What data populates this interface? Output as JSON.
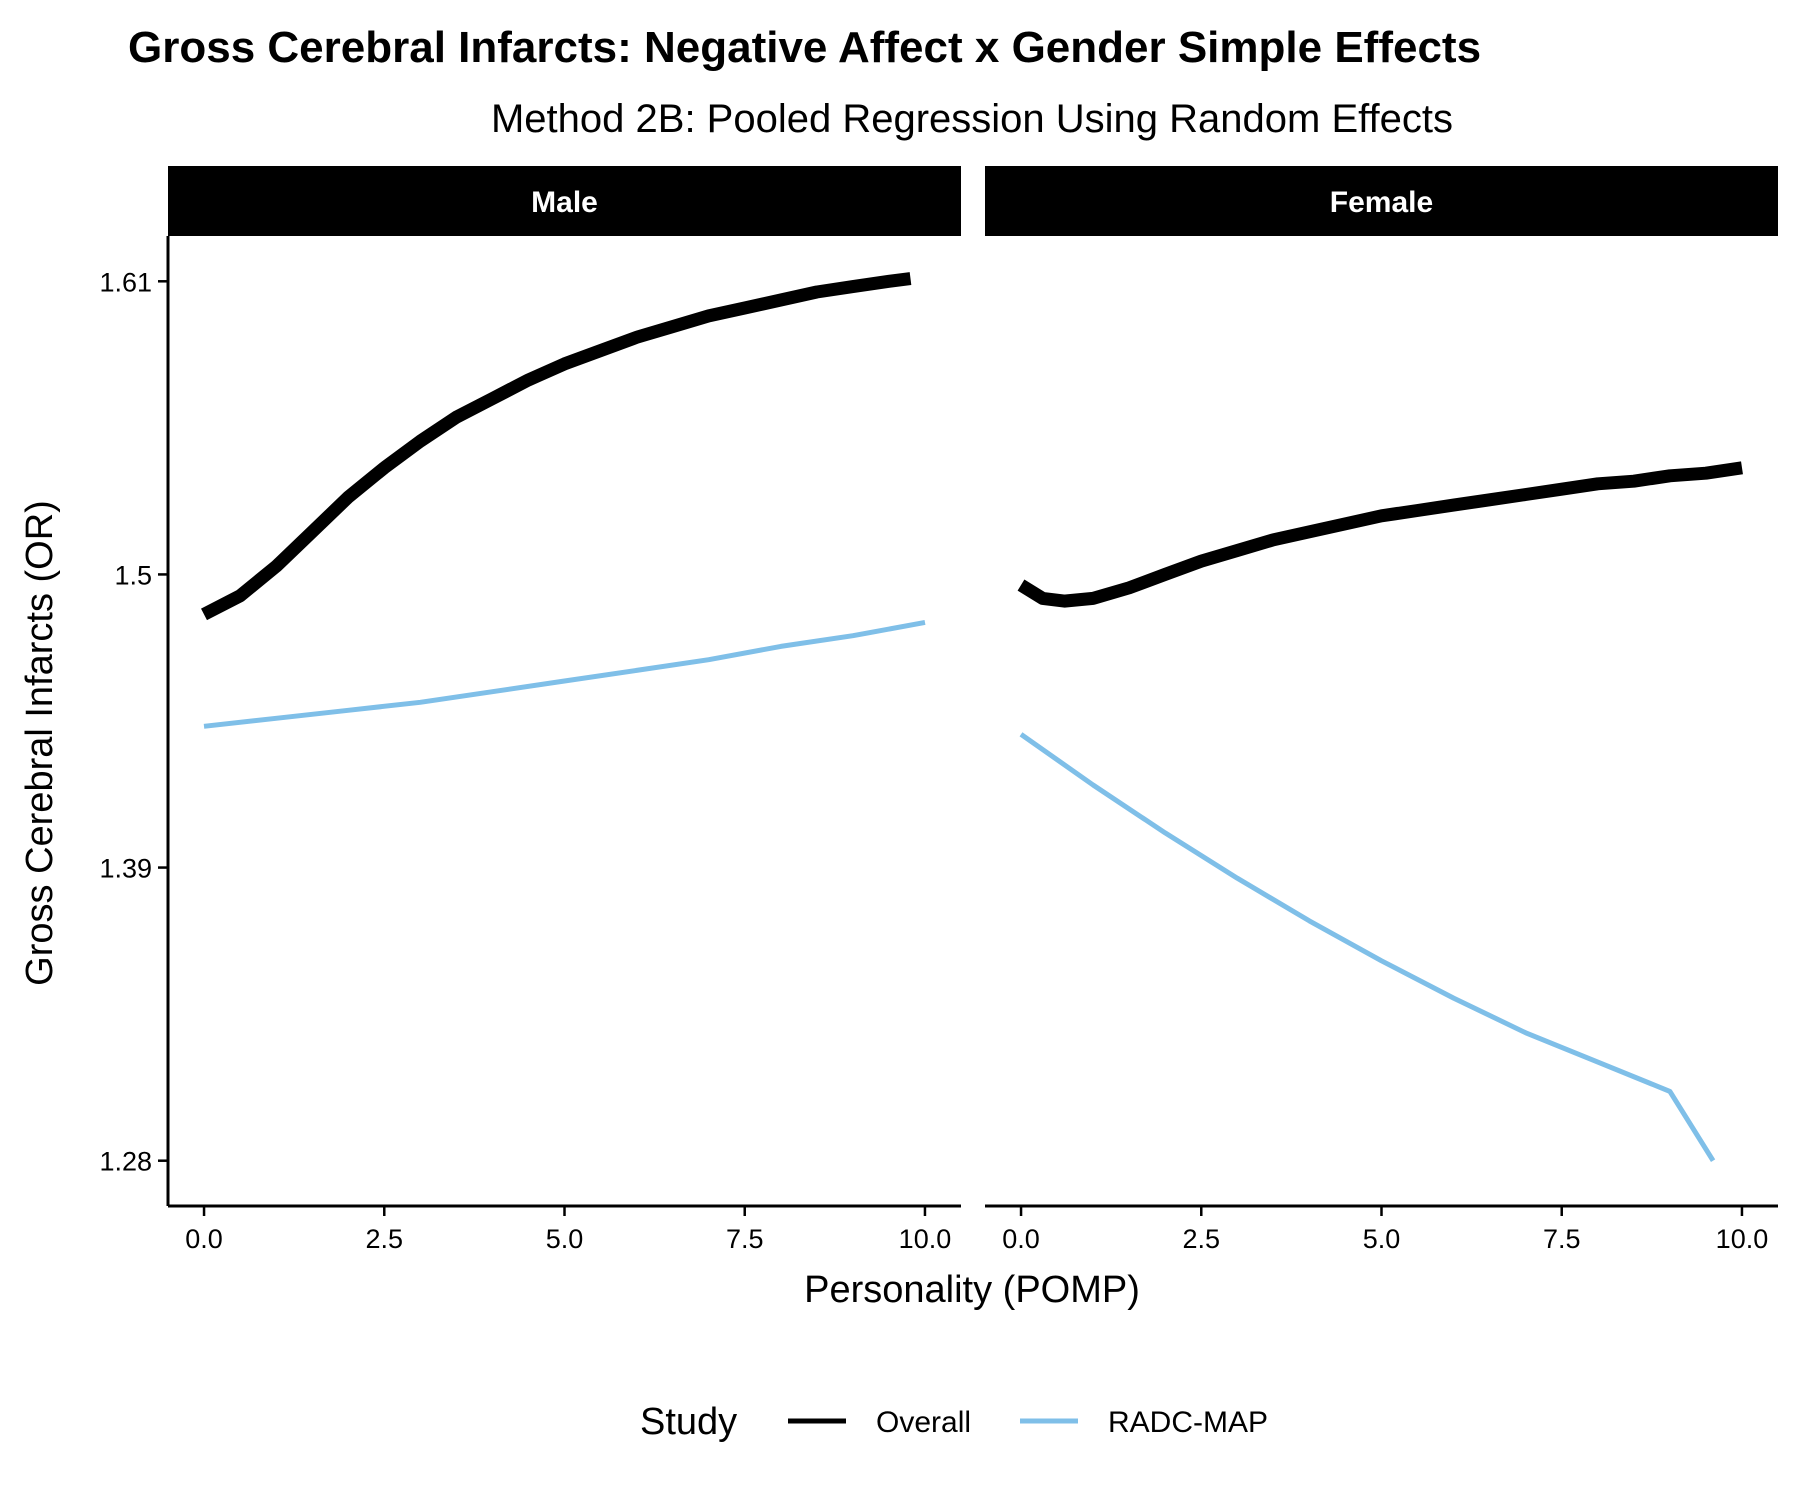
{
  "chart_data": {
    "type": "line",
    "title": "Gross Cerebral Infarcts: Negative Affect x Gender Simple Effects",
    "subtitle": "Method 2B: Pooled Regression Using Random Effects",
    "xlabel": "Personality (POMP)",
    "ylabel": "Gross Cerebral Infarcts (OR)",
    "xlim": [
      -0.5,
      10.5
    ],
    "ylim": [
      1.263,
      1.627
    ],
    "x_ticks": [
      0,
      2.5,
      5,
      7.5,
      10
    ],
    "x_tick_labels": [
      "0.0",
      "2.5",
      "5.0",
      "7.5",
      "10.0"
    ],
    "y_ticks": [
      1.28,
      1.39,
      1.5,
      1.61
    ],
    "y_tick_labels": [
      "1.28",
      "1.39",
      "1.5",
      "1.61"
    ],
    "grid": false,
    "legend": {
      "title": "Study",
      "position": "bottom",
      "entries": [
        {
          "label": "Overall",
          "color": "#000000"
        },
        {
          "label": "RADC-MAP",
          "color": "#7fbfe8"
        }
      ]
    },
    "panels": [
      {
        "label": "Male",
        "series": [
          {
            "name": "Overall",
            "color": "#000000",
            "x": [
              0,
              0.5,
              1,
              1.5,
              2,
              2.5,
              3,
              3.5,
              4,
              4.5,
              5,
              5.5,
              6,
              6.5,
              7,
              7.5,
              8,
              8.5,
              9,
              9.5,
              9.8
            ],
            "y": [
              1.485,
              1.492,
              1.503,
              1.516,
              1.529,
              1.54,
              1.55,
              1.559,
              1.566,
              1.573,
              1.579,
              1.584,
              1.589,
              1.593,
              1.597,
              1.6,
              1.603,
              1.606,
              1.608,
              1.61,
              1.611
            ]
          },
          {
            "name": "RADC-MAP",
            "color": "#7fbfe8",
            "x": [
              0,
              1,
              2,
              3,
              4,
              5,
              6,
              7,
              8,
              9,
              10
            ],
            "y": [
              1.443,
              1.446,
              1.449,
              1.452,
              1.456,
              1.46,
              1.464,
              1.468,
              1.473,
              1.477,
              1.482
            ]
          }
        ]
      },
      {
        "label": "Female",
        "series": [
          {
            "name": "Overall",
            "color": "#000000",
            "x": [
              0,
              0.3,
              0.6,
              1,
              1.5,
              2,
              2.5,
              3,
              3.5,
              4,
              4.5,
              5,
              5.5,
              6,
              6.5,
              7,
              7.5,
              8,
              8.5,
              9,
              9.5,
              10
            ],
            "y": [
              1.496,
              1.491,
              1.49,
              1.491,
              1.495,
              1.5,
              1.505,
              1.509,
              1.513,
              1.516,
              1.519,
              1.522,
              1.524,
              1.526,
              1.528,
              1.53,
              1.532,
              1.534,
              1.535,
              1.537,
              1.538,
              1.54
            ]
          },
          {
            "name": "RADC-MAP",
            "color": "#7fbfe8",
            "x": [
              0,
              1,
              2,
              3,
              4,
              5,
              6,
              7,
              8,
              9,
              9.6
            ],
            "y": [
              1.44,
              1.421,
              1.403,
              1.386,
              1.37,
              1.355,
              1.341,
              1.328,
              1.317,
              1.306,
              1.28
            ]
          }
        ]
      }
    ]
  }
}
